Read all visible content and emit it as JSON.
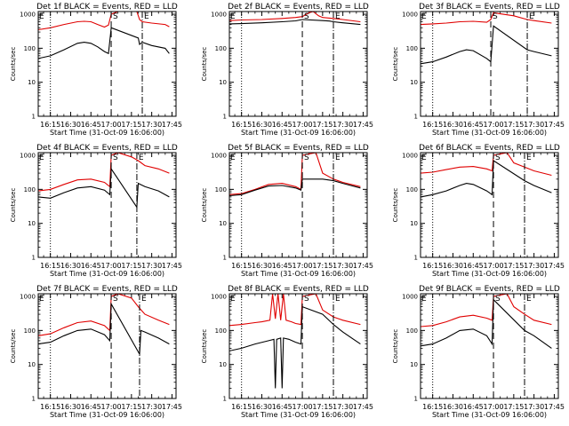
{
  "chart_data": [
    {
      "type": "line",
      "title": "Det 1f BLACK = Events, RED = LLD",
      "xlabel": "Start Time (31-Oct-09 16:06:00)",
      "ylabel": "Counts/sec",
      "x_ticks": [
        "16:15",
        "16:30",
        "16:45",
        "17:00",
        "17:15",
        "17:30",
        "17:45"
      ],
      "y_ticks": [
        "1",
        "10",
        "100",
        "1000"
      ],
      "ylim": [
        1,
        1200
      ],
      "yscale": "log",
      "markers": [
        {
          "label": "S",
          "x": "17:00"
        },
        {
          "label": "E",
          "x": "17:23"
        }
      ],
      "series": [
        {
          "name": "RED = LLD",
          "color": "#e00000",
          "x": [
            "16:06",
            "16:15",
            "16:25",
            "16:35",
            "16:40",
            "16:45",
            "16:50",
            "16:55",
            "16:58",
            "17:00",
            "17:05",
            "17:15",
            "17:19",
            "17:21",
            "17:23",
            "17:30",
            "17:40",
            "17:43"
          ],
          "values": [
            350,
            400,
            500,
            600,
            620,
            600,
            500,
            420,
            480,
            1000,
            1200,
            1200,
            1200,
            700,
            600,
            550,
            500,
            430
          ]
        },
        {
          "name": "BLACK = Events",
          "color": "#000000",
          "x": [
            "16:06",
            "16:15",
            "16:25",
            "16:35",
            "16:40",
            "16:45",
            "16:50",
            "16:55",
            "16:58",
            "17:00",
            "17:20",
            "17:21",
            "17:23",
            "17:30",
            "17:40",
            "17:43"
          ],
          "values": [
            50,
            60,
            90,
            140,
            150,
            140,
            110,
            80,
            70,
            400,
            200,
            130,
            150,
            120,
            100,
            70
          ]
        }
      ]
    },
    {
      "type": "line",
      "title": "Det 2f BLACK = Events, RED = LLD",
      "xlabel": "Start Time (31-Oct-09 16:06:00)",
      "ylabel": "Counts/sec",
      "x_ticks": [
        "16:15",
        "16:30",
        "16:45",
        "17:00",
        "17:15",
        "17:30",
        "17:45"
      ],
      "y_ticks": [
        "1",
        "10",
        "100",
        "1000"
      ],
      "ylim": [
        1,
        1200
      ],
      "yscale": "log",
      "markers": [
        {
          "label": "S",
          "x": "17:00"
        },
        {
          "label": "E",
          "x": "17:23"
        }
      ],
      "series": [
        {
          "name": "RED = LLD",
          "color": "#e00000",
          "x": [
            "16:06",
            "16:15",
            "16:30",
            "16:45",
            "16:55",
            "17:00",
            "17:05",
            "17:08",
            "17:12",
            "17:15",
            "17:23",
            "17:30",
            "17:43"
          ],
          "values": [
            650,
            680,
            700,
            750,
            800,
            850,
            1100,
            1200,
            900,
            800,
            750,
            700,
            600
          ]
        },
        {
          "name": "BLACK = Events",
          "color": "#000000",
          "x": [
            "16:06",
            "16:15",
            "16:30",
            "16:45",
            "16:55",
            "17:00",
            "17:15",
            "17:20",
            "17:23",
            "17:30",
            "17:43"
          ],
          "values": [
            520,
            530,
            560,
            600,
            640,
            700,
            650,
            630,
            600,
            560,
            500
          ]
        }
      ]
    },
    {
      "type": "line",
      "title": "Det 3f BLACK = Events, RED = LLD",
      "xlabel": "Start Time (31-Oct-09 16:06:00)",
      "ylabel": "Counts/sec",
      "x_ticks": [
        "16:15",
        "16:30",
        "16:45",
        "17:00",
        "17:15",
        "17:30",
        "17:45"
      ],
      "y_ticks": [
        "1",
        "10",
        "100",
        "1000"
      ],
      "ylim": [
        1,
        1200
      ],
      "yscale": "log",
      "markers": [
        {
          "label": "S",
          "x": "16:58"
        },
        {
          "label": "E",
          "x": "17:25"
        }
      ],
      "series": [
        {
          "name": "RED = LLD",
          "color": "#e00000",
          "x": [
            "16:06",
            "16:15",
            "16:25",
            "16:35",
            "16:45",
            "16:55",
            "16:58",
            "17:00",
            "17:15",
            "17:25",
            "17:30",
            "17:43"
          ],
          "values": [
            500,
            520,
            550,
            600,
            620,
            580,
            700,
            1100,
            900,
            700,
            650,
            550
          ]
        },
        {
          "name": "BLACK = Events",
          "color": "#000000",
          "x": [
            "16:06",
            "16:15",
            "16:25",
            "16:35",
            "16:40",
            "16:45",
            "16:55",
            "16:58",
            "17:00",
            "17:25",
            "17:30",
            "17:43"
          ],
          "values": [
            35,
            40,
            55,
            80,
            90,
            85,
            50,
            40,
            450,
            90,
            80,
            60
          ]
        }
      ]
    },
    {
      "type": "line",
      "title": "Det 4f BLACK = Events, RED = LLD",
      "xlabel": "Start Time (31-Oct-09 16:06:00)",
      "ylabel": "Counts/sec",
      "x_ticks": [
        "16:15",
        "16:30",
        "16:45",
        "17:00",
        "17:15",
        "17:30",
        "17:45"
      ],
      "y_ticks": [
        "1",
        "10",
        "100",
        "1000"
      ],
      "ylim": [
        1,
        1200
      ],
      "yscale": "log",
      "markers": [
        {
          "label": "S",
          "x": "17:00"
        },
        {
          "label": "E",
          "x": "17:19"
        }
      ],
      "series": [
        {
          "name": "RED = LLD",
          "color": "#e00000",
          "x": [
            "16:06",
            "16:15",
            "16:25",
            "16:35",
            "16:45",
            "16:55",
            "16:59",
            "17:00",
            "17:05",
            "17:15",
            "17:20",
            "17:25",
            "17:35",
            "17:43"
          ],
          "values": [
            90,
            100,
            140,
            190,
            200,
            160,
            120,
            1000,
            1200,
            900,
            700,
            500,
            400,
            300
          ]
        },
        {
          "name": "BLACK = Events",
          "color": "#000000",
          "x": [
            "16:06",
            "16:15",
            "16:25",
            "16:35",
            "16:45",
            "16:55",
            "16:59",
            "17:00",
            "17:19",
            "17:20",
            "17:25",
            "17:35",
            "17:43"
          ],
          "values": [
            60,
            55,
            80,
            110,
            120,
            95,
            70,
            400,
            30,
            150,
            120,
            90,
            60
          ]
        }
      ]
    },
    {
      "type": "line",
      "title": "Det 5f BLACK = Events, RED = LLD",
      "xlabel": "Start Time (31-Oct-09 16:06:00)",
      "ylabel": "Counts/sec",
      "x_ticks": [
        "16:15",
        "16:30",
        "16:45",
        "17:00",
        "17:15",
        "17:30",
        "17:45"
      ],
      "y_ticks": [
        "1",
        "10",
        "100",
        "1000"
      ],
      "ylim": [
        1,
        1200
      ],
      "yscale": "log",
      "markers": [
        {
          "label": "S",
          "x": "17:00"
        },
        {
          "label": "E",
          "x": "17:23"
        }
      ],
      "series": [
        {
          "name": "RED = LLD",
          "color": "#e00000",
          "x": [
            "16:06",
            "16:15",
            "16:25",
            "16:35",
            "16:45",
            "16:55",
            "16:59",
            "17:00",
            "17:10",
            "17:15",
            "17:23",
            "17:30",
            "17:43"
          ],
          "values": [
            70,
            75,
            100,
            140,
            150,
            120,
            100,
            1000,
            1200,
            300,
            200,
            160,
            120
          ]
        },
        {
          "name": "BLACK = Events",
          "color": "#000000",
          "x": [
            "16:06",
            "16:15",
            "16:25",
            "16:35",
            "16:45",
            "16:55",
            "16:59",
            "17:00",
            "17:15",
            "17:23",
            "17:30",
            "17:43"
          ],
          "values": [
            65,
            70,
            95,
            125,
            130,
            110,
            95,
            200,
            200,
            180,
            150,
            110
          ]
        }
      ]
    },
    {
      "type": "line",
      "title": "Det 6f BLACK = Events, RED = LLD",
      "xlabel": "Start Time (31-Oct-09 16:06:00)",
      "ylabel": "Counts/sec",
      "x_ticks": [
        "16:15",
        "16:30",
        "16:45",
        "17:00",
        "17:15",
        "17:30",
        "17:45"
      ],
      "y_ticks": [
        "1",
        "10",
        "100",
        "1000"
      ],
      "ylim": [
        1,
        1200
      ],
      "yscale": "log",
      "markers": [
        {
          "label": "S",
          "x": "17:00"
        },
        {
          "label": "E",
          "x": "17:23"
        }
      ],
      "series": [
        {
          "name": "RED = LLD",
          "color": "#e00000",
          "x": [
            "16:06",
            "16:15",
            "16:25",
            "16:35",
            "16:45",
            "16:55",
            "16:59",
            "17:00",
            "17:10",
            "17:15",
            "17:23",
            "17:30",
            "17:43"
          ],
          "values": [
            300,
            320,
            380,
            450,
            470,
            400,
            350,
            1000,
            1200,
            600,
            450,
            350,
            260
          ]
        },
        {
          "name": "BLACK = Events",
          "color": "#000000",
          "x": [
            "16:06",
            "16:15",
            "16:25",
            "16:35",
            "16:40",
            "16:45",
            "16:55",
            "16:59",
            "17:00",
            "17:23",
            "17:30",
            "17:43"
          ],
          "values": [
            60,
            70,
            90,
            130,
            150,
            140,
            90,
            70,
            700,
            180,
            130,
            80
          ]
        }
      ]
    },
    {
      "type": "line",
      "title": "Det 7f BLACK = Events, RED = LLD",
      "xlabel": "Start Time (31-Oct-09 16:06:00)",
      "ylabel": "Counts/sec",
      "x_ticks": [
        "16:15",
        "16:30",
        "16:45",
        "17:00",
        "17:15",
        "17:30",
        "17:45"
      ],
      "y_ticks": [
        "1",
        "10",
        "100",
        "1000"
      ],
      "ylim": [
        1,
        1200
      ],
      "yscale": "log",
      "markers": [
        {
          "label": "S",
          "x": "17:00"
        },
        {
          "label": "E",
          "x": "17:21"
        }
      ],
      "series": [
        {
          "name": "RED = LLD",
          "color": "#e00000",
          "x": [
            "16:06",
            "16:15",
            "16:25",
            "16:35",
            "16:45",
            "16:55",
            "16:59",
            "17:00",
            "17:05",
            "17:15",
            "17:20",
            "17:25",
            "17:35",
            "17:43"
          ],
          "values": [
            70,
            80,
            120,
            170,
            190,
            140,
            100,
            1000,
            1200,
            900,
            500,
            300,
            200,
            150
          ]
        },
        {
          "name": "BLACK = Events",
          "color": "#000000",
          "x": [
            "16:06",
            "16:15",
            "16:25",
            "16:35",
            "16:45",
            "16:55",
            "16:59",
            "17:00",
            "17:21",
            "17:22",
            "17:25",
            "17:35",
            "17:43"
          ],
          "values": [
            40,
            45,
            70,
            100,
            110,
            75,
            50,
            600,
            20,
            100,
            90,
            60,
            40
          ]
        }
      ]
    },
    {
      "type": "line",
      "title": "Det 8f BLACK = Events, RED = LLD",
      "xlabel": "Start Time (31-Oct-09 16:06:00)",
      "ylabel": "Counts/sec",
      "x_ticks": [
        "16:15",
        "16:30",
        "16:45",
        "17:00",
        "17:15",
        "17:30",
        "17:45"
      ],
      "y_ticks": [
        "1",
        "10",
        "100",
        "1000"
      ],
      "ylim": [
        1,
        1200
      ],
      "yscale": "log",
      "markers": [
        {
          "label": "S",
          "x": "17:00"
        },
        {
          "label": "E",
          "x": "17:23"
        }
      ],
      "series": [
        {
          "name": "RED = LLD",
          "color": "#e00000",
          "x": [
            "16:06",
            "16:15",
            "16:25",
            "16:30",
            "16:36",
            "16:38",
            "16:40",
            "16:42",
            "16:44",
            "16:46",
            "16:48",
            "16:52",
            "16:55",
            "16:59",
            "17:00",
            "17:10",
            "17:15",
            "17:23",
            "17:30",
            "17:43"
          ],
          "values": [
            140,
            150,
            170,
            180,
            200,
            1200,
            220,
            1200,
            200,
            1200,
            200,
            180,
            160,
            150,
            1000,
            1200,
            400,
            250,
            200,
            150
          ]
        },
        {
          "name": "BLACK = Events",
          "color": "#000000",
          "x": [
            "16:06",
            "16:15",
            "16:25",
            "16:35",
            "16:39",
            "16:40",
            "16:41",
            "16:44",
            "16:45",
            "16:46",
            "16:50",
            "16:55",
            "16:59",
            "17:00",
            "17:15",
            "17:23",
            "17:30",
            "17:43"
          ],
          "values": [
            25,
            30,
            40,
            50,
            55,
            2,
            55,
            60,
            2,
            60,
            55,
            45,
            40,
            500,
            300,
            150,
            90,
            40
          ]
        }
      ]
    },
    {
      "type": "line",
      "title": "Det 9f BLACK = Events, RED = LLD",
      "xlabel": "Start Time (31-Oct-09 16:06:00)",
      "ylabel": "Counts/sec",
      "x_ticks": [
        "16:15",
        "16:30",
        "16:45",
        "17:00",
        "17:15",
        "17:30",
        "17:45"
      ],
      "y_ticks": [
        "1",
        "10",
        "100",
        "1000"
      ],
      "ylim": [
        1,
        1200
      ],
      "yscale": "log",
      "markers": [
        {
          "label": "S",
          "x": "17:00"
        },
        {
          "label": "E",
          "x": "17:23"
        }
      ],
      "series": [
        {
          "name": "RED = LLD",
          "color": "#e00000",
          "x": [
            "16:06",
            "16:15",
            "16:25",
            "16:35",
            "16:45",
            "16:55",
            "16:59",
            "17:00",
            "17:10",
            "17:15",
            "17:23",
            "17:30",
            "17:43"
          ],
          "values": [
            130,
            140,
            180,
            250,
            280,
            230,
            200,
            1000,
            1200,
            500,
            300,
            200,
            150
          ]
        },
        {
          "name": "BLACK = Events",
          "color": "#000000",
          "x": [
            "16:06",
            "16:15",
            "16:25",
            "16:35",
            "16:45",
            "16:55",
            "16:59",
            "17:00",
            "17:23",
            "17:30",
            "17:43"
          ],
          "values": [
            35,
            40,
            60,
            100,
            110,
            70,
            40,
            800,
            100,
            70,
            30
          ]
        }
      ]
    }
  ]
}
